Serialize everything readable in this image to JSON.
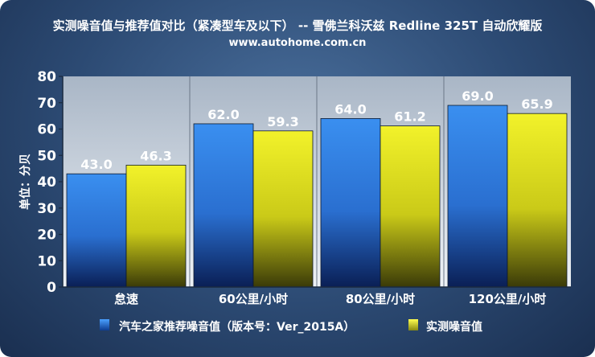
{
  "chart_data": {
    "type": "bar",
    "title": "实测噪音值与推荐值对比（紧凑型车及以下） -- 雪佛兰科沃兹 Redline 325T 自动欣耀版",
    "subtitle": "www.autohome.com.cn",
    "ylabel": "单位：分贝",
    "xlabel": "",
    "categories": [
      "怠速",
      "60公里/小时",
      "80公里/小时",
      "120公里/小时"
    ],
    "ylim": [
      0,
      80
    ],
    "yticks": [
      0,
      10,
      20,
      30,
      40,
      50,
      60,
      70,
      80
    ],
    "grid": false,
    "legend": "bottom",
    "series": [
      {
        "name": "汽车之家推荐噪音值（版本号：Ver_2015A）",
        "values": [
          43.0,
          62.0,
          64.0,
          69.0
        ],
        "labels": [
          "43.0",
          "62.0",
          "64.0",
          "69.0"
        ],
        "color": "#2f7fe6"
      },
      {
        "name": "实测噪音值",
        "values": [
          46.3,
          59.3,
          61.2,
          65.9
        ],
        "labels": [
          "46.3",
          "59.3",
          "61.2",
          "65.9"
        ],
        "color": "#e6e61e"
      }
    ]
  }
}
